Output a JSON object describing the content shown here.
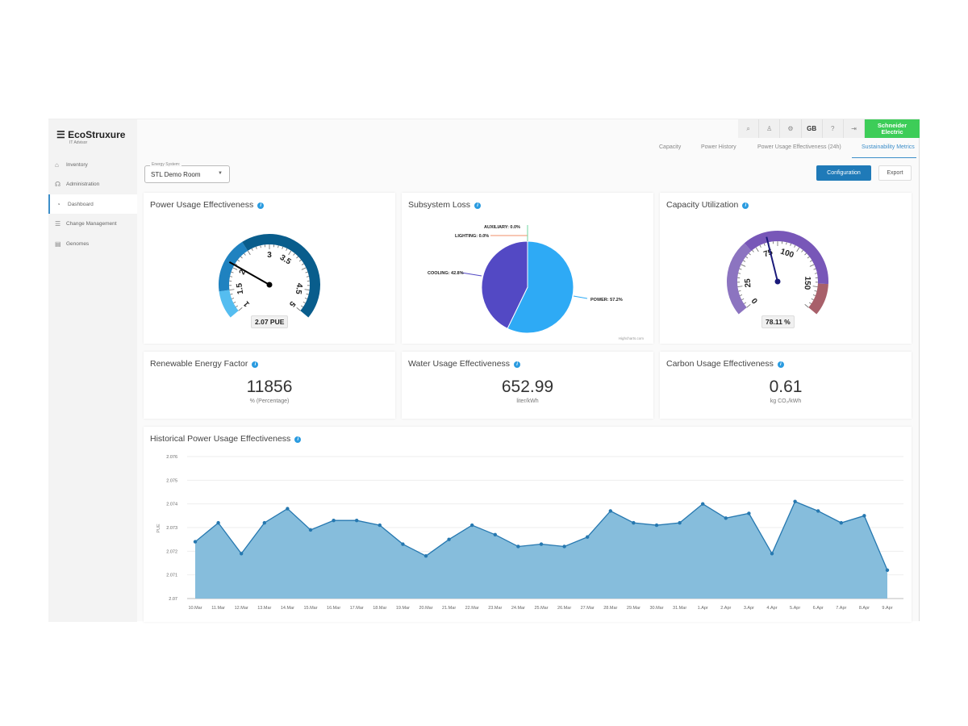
{
  "app": {
    "logo": "EcoStruxure",
    "logo_sub": "IT Advisor",
    "brand": "Schneider Electric"
  },
  "sidebar": {
    "items": [
      {
        "label": "Inventory",
        "icon": "home-icon"
      },
      {
        "label": "Administration",
        "icon": "users-icon"
      },
      {
        "label": "Dashboard",
        "icon": "dashboard-icon",
        "active": true
      },
      {
        "label": "Change Management",
        "icon": "list-icon"
      },
      {
        "label": "Genomes",
        "icon": "grid-icon"
      }
    ]
  },
  "topbar": {
    "icons": [
      "search-icon",
      "user-icon",
      "gear-icon",
      "GB",
      "help-icon",
      "logout-icon"
    ],
    "locale": "GB"
  },
  "tabs": [
    {
      "label": "Capacity"
    },
    {
      "label": "Power History"
    },
    {
      "label": "Power Usage Effectiveness (24h)"
    },
    {
      "label": "Sustainability Metrics",
      "active": true
    }
  ],
  "energy_system": {
    "label": "Energy System:",
    "value": "STL Demo Room"
  },
  "buttons": {
    "configuration": "Configuration",
    "export": "Export"
  },
  "colors": {
    "accent": "#1f7ab8",
    "brand": "#3dcd58",
    "area": "#86bddc",
    "line": "#2678b0"
  },
  "pue": {
    "title": "Power Usage Effectiveness",
    "value": 2.07,
    "readout": "2.07 PUE",
    "min": 1,
    "max": 5,
    "labels": [
      "1",
      "1.5",
      "2",
      "3",
      "3.5",
      "4.5",
      "5"
    ],
    "bands": [
      {
        "from": 1,
        "to": 1.5,
        "color": "#55bdf0"
      },
      {
        "from": 1.5,
        "to": 2.5,
        "color": "#1f82c0"
      },
      {
        "from": 2.5,
        "to": 5,
        "color": "#095d8c"
      }
    ]
  },
  "subsystem": {
    "title": "Subsystem Loss",
    "credit": "Highcharts.com",
    "slices": [
      {
        "label": "POWER: 57.2%",
        "value": 57.2,
        "color": "#2eaaf5"
      },
      {
        "label": "COOLING: 42.8%",
        "value": 42.8,
        "color": "#5349c4"
      },
      {
        "label": "LIGHTING: 0.0%",
        "value": 0,
        "color": "#f28f6a"
      },
      {
        "label": "AUXILIARY: 0.0%",
        "value": 0,
        "color": "#6fd6a0"
      }
    ]
  },
  "capacity": {
    "title": "Capacity Utilization",
    "value": 78.11,
    "readout": "78.11 %",
    "min": 0,
    "max": 175,
    "labels": [
      "0",
      "25",
      "75",
      "100",
      "150"
    ],
    "bands": [
      {
        "from": 0,
        "to": 60,
        "color": "#8c74c0"
      },
      {
        "from": 60,
        "to": 150,
        "color": "#7857b8"
      },
      {
        "from": 150,
        "to": 175,
        "color": "#a8606a"
      }
    ]
  },
  "ref": {
    "title": "Renewable Energy Factor",
    "value": "11856",
    "unit": "% (Percentage)"
  },
  "wue": {
    "title": "Water Usage Effectiveness",
    "value": "652.99",
    "unit": "liter/kWh"
  },
  "cue": {
    "title": "Carbon Usage Effectiveness",
    "value": "0.61",
    "unit": "kg CO₂/kWh"
  },
  "chart_data": {
    "type": "area",
    "title": "Historical Power Usage Effectiveness",
    "xlabel": "",
    "ylabel": "PUE",
    "ylim": [
      2.07,
      2.076
    ],
    "yticks": [
      "2.07",
      "2.071",
      "2.072",
      "2.073",
      "2.074",
      "2.075",
      "2.076"
    ],
    "grid": true,
    "categories": [
      "10.Mar",
      "11.Mar",
      "12.Mar",
      "13.Mar",
      "14.Mar",
      "15.Mar",
      "16.Mar",
      "17.Mar",
      "18.Mar",
      "19.Mar",
      "20.Mar",
      "21.Mar",
      "22.Mar",
      "23.Mar",
      "24.Mar",
      "25.Mar",
      "26.Mar",
      "27.Mar",
      "28.Mar",
      "29.Mar",
      "30.Mar",
      "31.Mar",
      "1.Apr",
      "2.Apr",
      "3.Apr",
      "4.Apr",
      "5.Apr",
      "6.Apr",
      "7.Apr",
      "8.Apr",
      "9.Apr"
    ],
    "values": [
      2.0724,
      2.0732,
      2.0719,
      2.0732,
      2.0738,
      2.0729,
      2.0733,
      2.0733,
      2.0731,
      2.0723,
      2.0718,
      2.0725,
      2.0731,
      2.0727,
      2.0722,
      2.0723,
      2.0722,
      2.0726,
      2.0737,
      2.0732,
      2.0731,
      2.0732,
      2.074,
      2.0734,
      2.0736,
      2.0719,
      2.0741,
      2.0737,
      2.0732,
      2.0735,
      2.0712
    ]
  }
}
